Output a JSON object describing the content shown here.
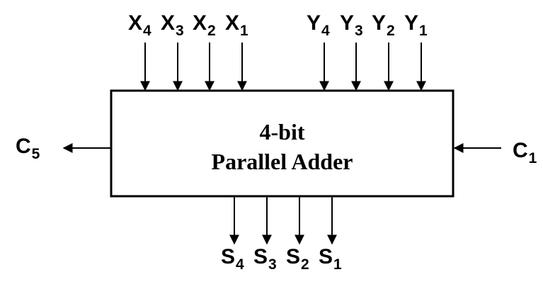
{
  "block": {
    "line1": "4-bit",
    "line2": "Parallel Adder"
  },
  "inputs_x": [
    {
      "name": "X",
      "sub": "4"
    },
    {
      "name": "X",
      "sub": "3"
    },
    {
      "name": "X",
      "sub": "2"
    },
    {
      "name": "X",
      "sub": "1"
    }
  ],
  "inputs_y": [
    {
      "name": "Y",
      "sub": "4"
    },
    {
      "name": "Y",
      "sub": "3"
    },
    {
      "name": "Y",
      "sub": "2"
    },
    {
      "name": "Y",
      "sub": "1"
    }
  ],
  "outputs_s": [
    {
      "name": "S",
      "sub": "4"
    },
    {
      "name": "S",
      "sub": "3"
    },
    {
      "name": "S",
      "sub": "2"
    },
    {
      "name": "S",
      "sub": "1"
    }
  ],
  "carry_in": {
    "name": "C",
    "sub": "1"
  },
  "carry_out": {
    "name": "C",
    "sub": "5"
  },
  "colors": {
    "stroke": "#000000",
    "background": "#ffffff"
  }
}
